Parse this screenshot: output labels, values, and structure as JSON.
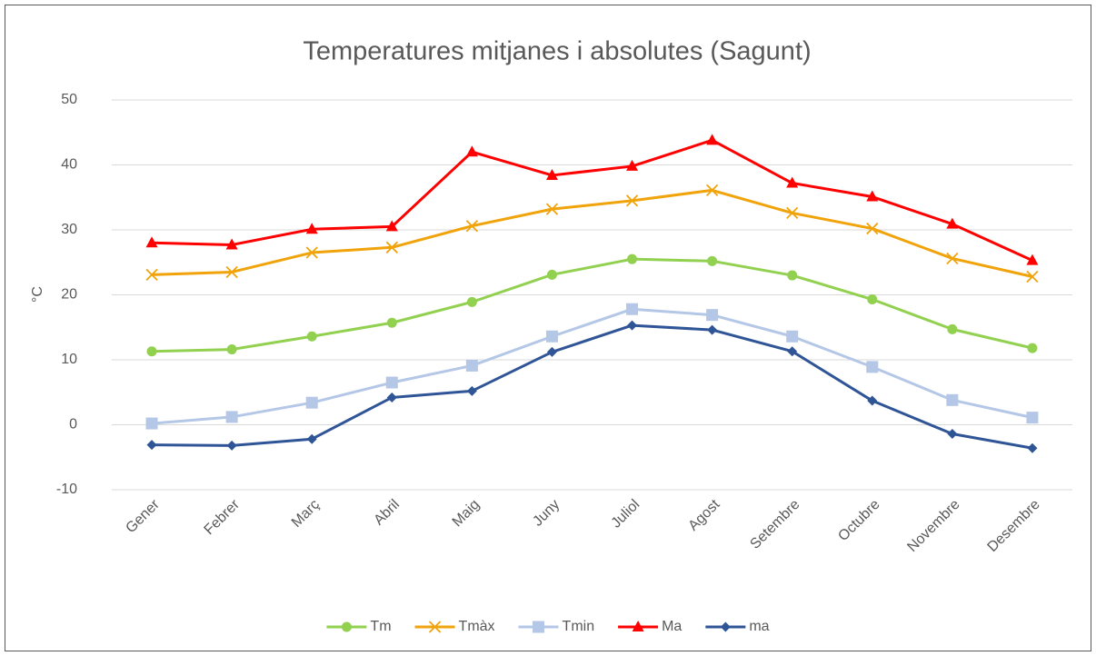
{
  "chart_data": {
    "type": "line",
    "title": "Temperatures mitjanes i absolutes (Sagunt)",
    "y_label": "°C",
    "categories": [
      "Gener",
      "Febrer",
      "Març",
      "Abril",
      "Maig",
      "Juny",
      "Juliol",
      "Agost",
      "Setembre",
      "Octubre",
      "Novembre",
      "Desembre"
    ],
    "series": [
      {
        "name": "Tm",
        "color": "#92d050",
        "marker": "circle",
        "values": [
          11.3,
          11.6,
          13.6,
          15.7,
          18.9,
          23.1,
          25.5,
          25.2,
          23.0,
          19.3,
          14.7,
          11.8
        ]
      },
      {
        "name": "Tmàx",
        "color": "#f0a30a",
        "marker": "x",
        "values": [
          23.1,
          23.5,
          26.5,
          27.3,
          30.6,
          33.2,
          34.5,
          36.1,
          32.6,
          30.2,
          25.6,
          22.8
        ]
      },
      {
        "name": "Tmin",
        "color": "#b4c7e7",
        "marker": "square",
        "values": [
          0.2,
          1.2,
          3.4,
          6.5,
          9.1,
          13.6,
          17.8,
          16.9,
          13.6,
          8.9,
          3.8,
          1.1
        ]
      },
      {
        "name": "Ma",
        "color": "#ff0000",
        "marker": "triangle",
        "values": [
          28.0,
          27.7,
          30.1,
          30.5,
          42.0,
          38.4,
          39.8,
          43.8,
          37.2,
          35.1,
          30.9,
          25.3
        ]
      },
      {
        "name": "ma",
        "color": "#2f5597",
        "marker": "diamond",
        "values": [
          -3.1,
          -3.2,
          -2.2,
          4.2,
          5.2,
          11.2,
          15.3,
          14.6,
          11.3,
          3.7,
          -1.4,
          -3.6
        ]
      }
    ],
    "ylim": [
      -10,
      50
    ],
    "yticks": [
      -10,
      0,
      10,
      20,
      30,
      40,
      50
    ],
    "grid": true,
    "legend": "bottom"
  }
}
